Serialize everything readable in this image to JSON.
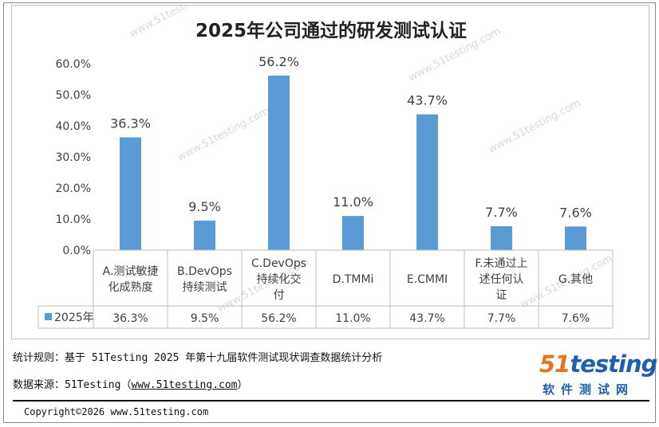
{
  "chart_data": {
    "type": "bar",
    "title": "2025年公司通过的研发测试认证",
    "categories": [
      [
        "A.测试敏捷",
        "化成熟度"
      ],
      [
        "B.DevOps",
        "持续测试"
      ],
      [
        "C.DevOps",
        "持续化交",
        "付"
      ],
      [
        "D.TMMi"
      ],
      [
        "E.CMMI"
      ],
      [
        "F.未通过上",
        "述任何认",
        "证"
      ],
      [
        "G.其他"
      ]
    ],
    "series": [
      {
        "name": "2025年",
        "values": [
          36.3,
          9.5,
          56.2,
          11.0,
          43.7,
          7.7,
          7.6
        ],
        "labels": [
          "36.3%",
          "9.5%",
          "56.2%",
          "11.0%",
          "43.7%",
          "7.7%",
          "7.6%"
        ]
      }
    ],
    "yticks": [
      "0.0%",
      "10.0%",
      "20.0%",
      "30.0%",
      "40.0%",
      "50.0%",
      "60.0%"
    ],
    "ylim": [
      0,
      60
    ],
    "data_table": true,
    "grid": false,
    "bar_color": "#5b9bd5",
    "watermark": "www.51testing.com"
  },
  "footer": {
    "rule": "统计规则：基于 51Testing 2025 年第十九届软件测试现状调查数据统计分析",
    "source_prefix": "数据来源：51Testing（",
    "source_link": "www.51testing.com",
    "source_suffix": "）"
  },
  "copyright": "Copyright©2026 www.51testing.com",
  "logo": {
    "main_prefix": "51",
    "main_rest": "testing",
    "sub": "软件测试网"
  }
}
